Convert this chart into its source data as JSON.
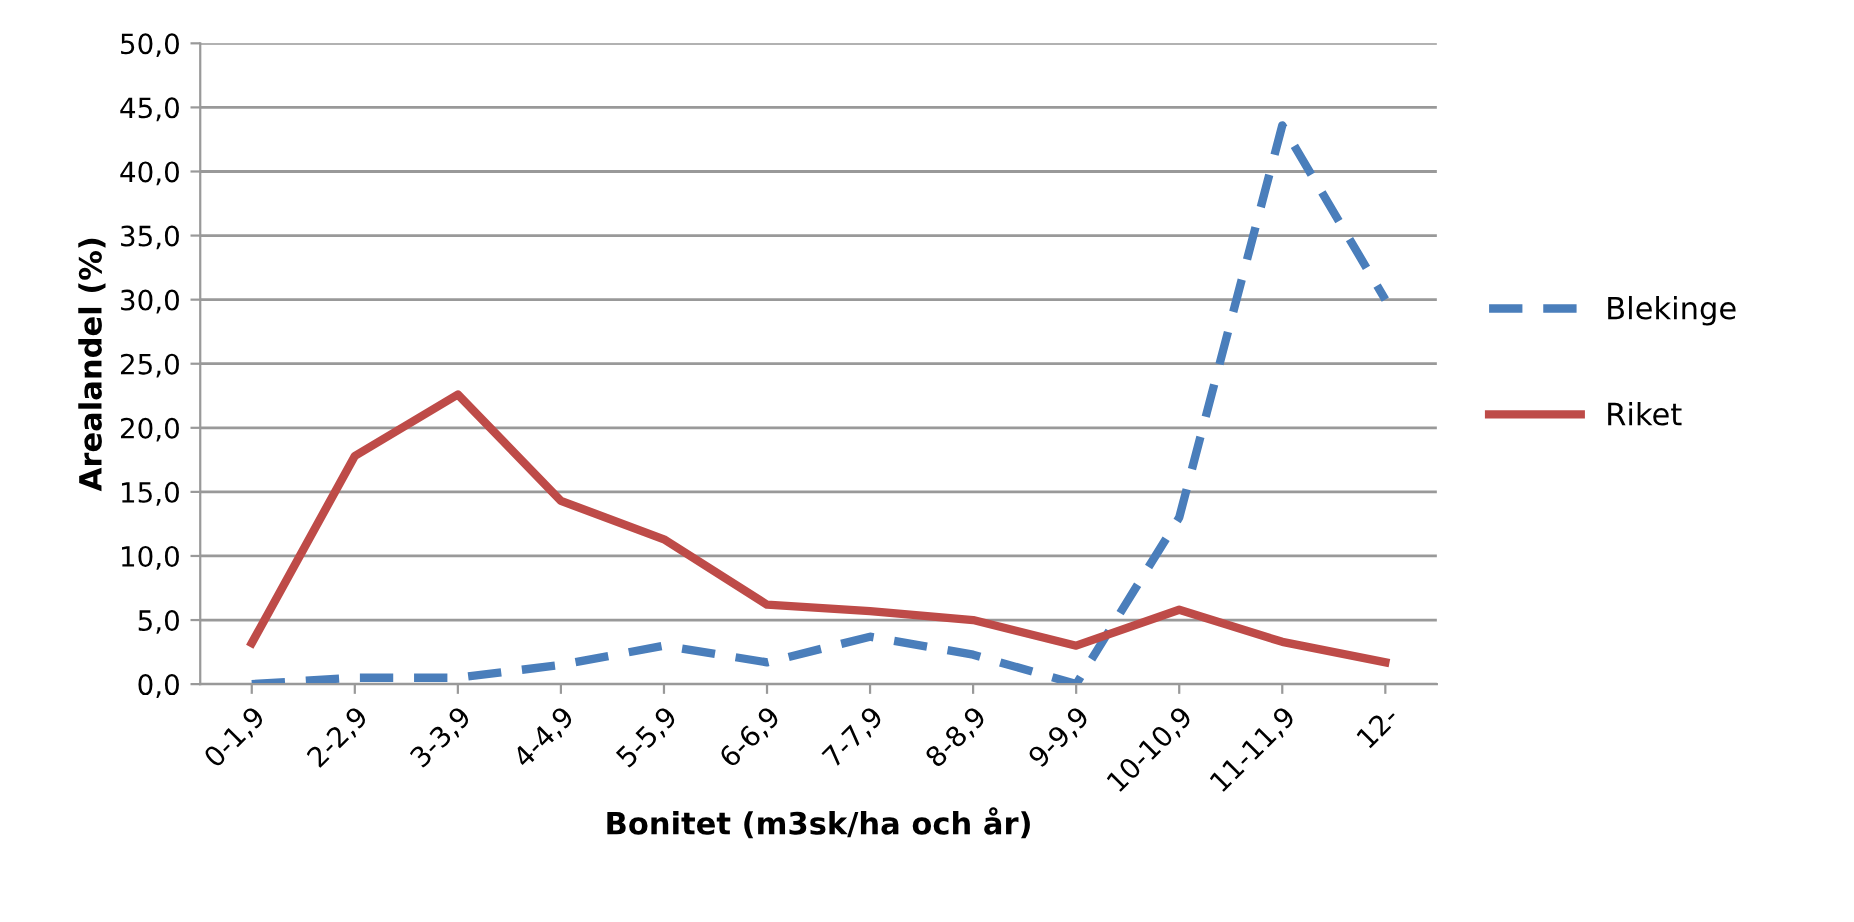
{
  "chart_data": {
    "type": "line",
    "xlabel": "Bonitet (m3sk/ha och år)",
    "ylabel": "Arealandel (%)",
    "categories": [
      "0-1,9",
      "2-2,9",
      "3-3,9",
      "4-4,9",
      "5-5,9",
      "6-6,9",
      "7-7,9",
      "8-8,9",
      "9-9,9",
      "10-10,9",
      "11-11,9",
      "12-"
    ],
    "series": [
      {
        "name": "Blekinge",
        "color": "#4a7ebb",
        "line_style": "dashed",
        "values": [
          0.0,
          0.5,
          0.5,
          1.5,
          3.0,
          1.7,
          3.7,
          2.3,
          0.0,
          13.0,
          43.6,
          30.0
        ]
      },
      {
        "name": "Riket",
        "color": "#be4b48",
        "line_style": "solid",
        "values": [
          3.2,
          17.8,
          22.6,
          14.3,
          11.3,
          6.2,
          5.7,
          5.0,
          3.0,
          5.8,
          3.3,
          1.7
        ]
      }
    ],
    "ylim": [
      0,
      50
    ],
    "yticks": [
      {
        "value": 0,
        "label": "0,0"
      },
      {
        "value": 5,
        "label": "5,0"
      },
      {
        "value": 10,
        "label": "10,0"
      },
      {
        "value": 15,
        "label": "15,0"
      },
      {
        "value": 20,
        "label": "20,0"
      },
      {
        "value": 25,
        "label": "25,0"
      },
      {
        "value": 30,
        "label": "30,0"
      },
      {
        "value": 35,
        "label": "35,0"
      },
      {
        "value": 40,
        "label": "40,0"
      },
      {
        "value": 45,
        "label": "45,0"
      },
      {
        "value": 50,
        "label": "50,0"
      }
    ],
    "grid": "y",
    "legend": "right",
    "marker": "none"
  }
}
